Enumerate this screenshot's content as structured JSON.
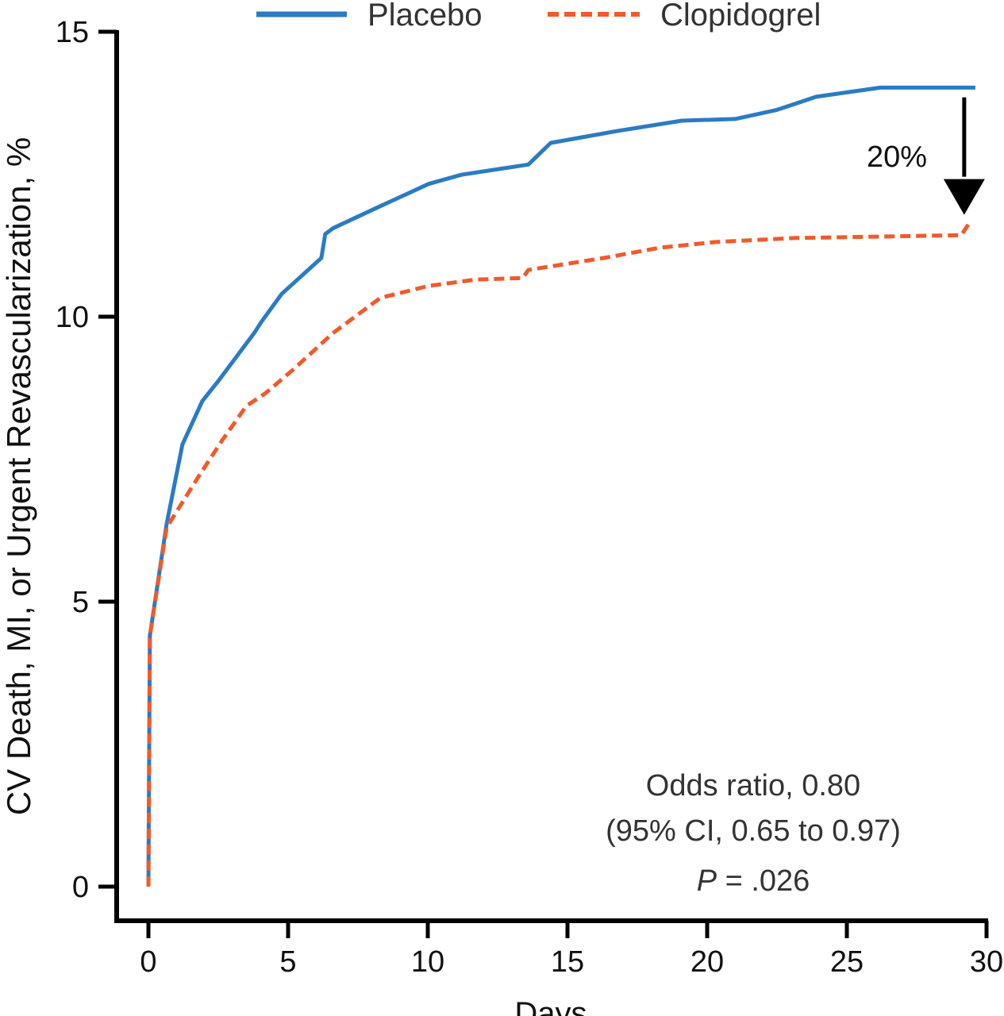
{
  "chart_data": {
    "type": "line",
    "title": "",
    "xlabel": "Days",
    "ylabel": "CV Death, MI, or Urgent Revascularization, %",
    "xlim": [
      0,
      30
    ],
    "ylim": [
      0,
      15
    ],
    "xticks": [
      0,
      5,
      10,
      15,
      20,
      25,
      30
    ],
    "yticks": [
      0,
      5,
      10,
      15
    ],
    "grid": false,
    "legend_placement": "top",
    "series": [
      {
        "name": "Placebo",
        "color": "#2b7bc4",
        "style": "solid",
        "x": [
          0,
          0.05,
          0.65,
          1.22,
          1.93,
          2.5,
          3.78,
          4.06,
          4.77,
          6.19,
          6.33,
          6.6,
          8.3,
          10.03,
          11.2,
          13.6,
          14.4,
          16.8,
          19.1,
          21.0,
          22.5,
          23.9,
          26.2,
          29.6
        ],
        "y": [
          0,
          4.4,
          6.36,
          7.76,
          8.52,
          8.87,
          9.71,
          9.92,
          10.4,
          11.03,
          11.45,
          11.55,
          11.94,
          12.33,
          12.49,
          12.67,
          13.05,
          13.26,
          13.44,
          13.47,
          13.63,
          13.86,
          14.02,
          14.02
        ]
      },
      {
        "name": "Clopidogrel",
        "color": "#f15a2b",
        "style": "dashed",
        "x": [
          0,
          0.05,
          0.65,
          1.8,
          2.64,
          3.5,
          4.2,
          5.2,
          6.6,
          8.3,
          10.03,
          11.7,
          13.4,
          13.6,
          16.3,
          18.3,
          20.3,
          23.1,
          29.1,
          29.4
        ],
        "y": [
          0,
          4.4,
          6.3,
          7.2,
          7.83,
          8.43,
          8.66,
          9.08,
          9.71,
          10.33,
          10.54,
          10.65,
          10.68,
          10.82,
          11.03,
          11.21,
          11.31,
          11.38,
          11.43,
          11.66
        ]
      }
    ],
    "annotations": {
      "reduction_label": "20%",
      "arrow": {
        "x": 29.2,
        "from_y": 13.85,
        "to_y": 11.9
      },
      "odds_ratio": "Odds ratio, 0.80",
      "ci": "(95% CI, 0.65 to 0.97)",
      "p_label": "P",
      "p_value": " = .026"
    }
  }
}
